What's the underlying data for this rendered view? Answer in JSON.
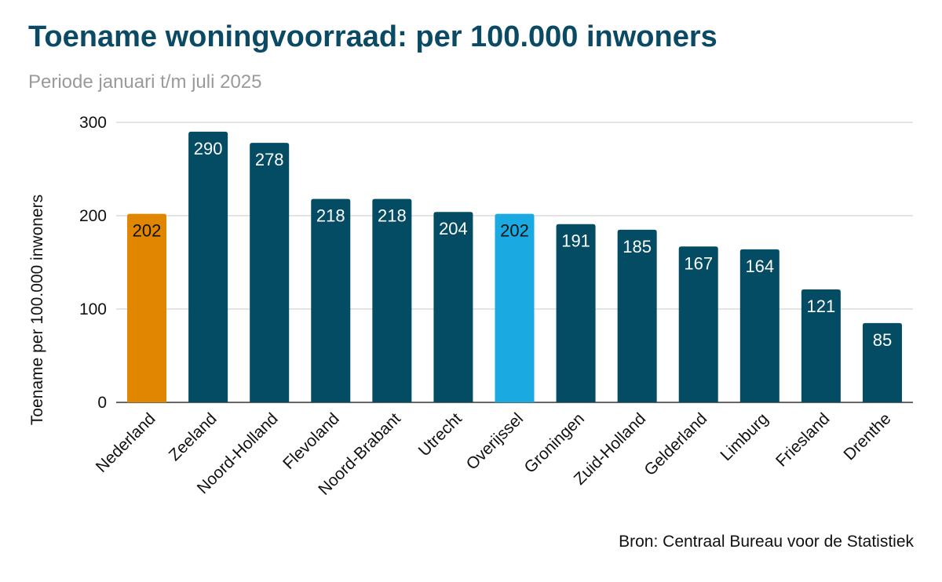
{
  "chart_data": {
    "type": "bar",
    "title": "Toename woningvoorraad: per 100.000 inwoners",
    "subtitle": "Periode januari t/m juli 2025",
    "source": "Bron: Centraal Bureau voor de Statistiek",
    "ylabel": "Toename per 100.000 inwoners",
    "xlabel": "",
    "ylim": [
      0,
      300
    ],
    "yticks": [
      0,
      100,
      200,
      300
    ],
    "grid": true,
    "categories": [
      "Nederland",
      "Zeeland",
      "Noord-Holland",
      "Flevoland",
      "Noord-Brabant",
      "Utrecht",
      "Overijssel",
      "Groningen",
      "Zuid-Holland",
      "Gelderland",
      "Limburg",
      "Friesland",
      "Drenthe"
    ],
    "values": [
      202,
      290,
      278,
      218,
      218,
      204,
      202,
      191,
      185,
      167,
      164,
      121,
      85
    ],
    "colors": [
      "#e08600",
      "#044b64",
      "#044b64",
      "#044b64",
      "#044b64",
      "#044b64",
      "#1aa9e0",
      "#044b64",
      "#044b64",
      "#044b64",
      "#044b64",
      "#044b64",
      "#044b64"
    ],
    "label_colors": [
      "#111111",
      "#ffffff",
      "#ffffff",
      "#ffffff",
      "#ffffff",
      "#ffffff",
      "#111111",
      "#ffffff",
      "#ffffff",
      "#ffffff",
      "#ffffff",
      "#ffffff",
      "#ffffff"
    ]
  }
}
